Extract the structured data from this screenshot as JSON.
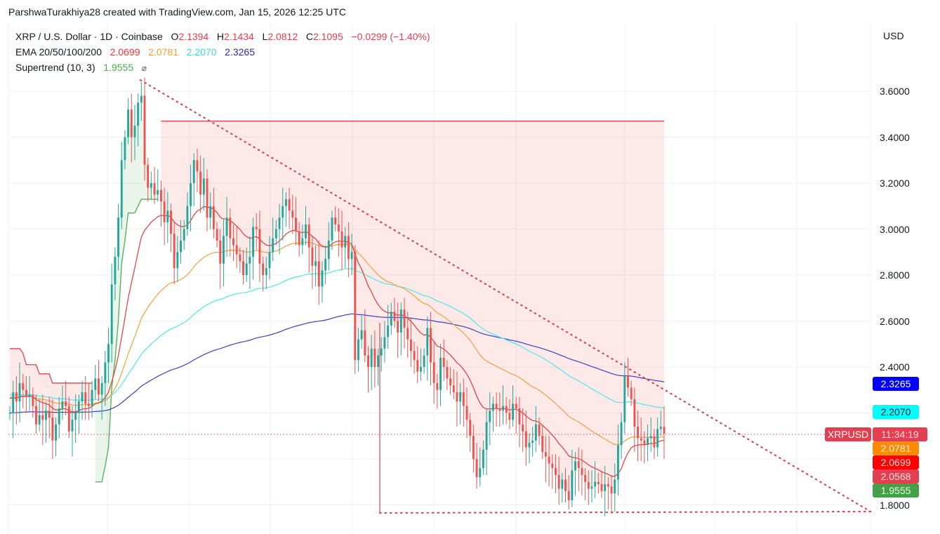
{
  "credit": "ParshwaTurakhiya28 created with TradingView.com, Jan 15, 2026 12:25 UTC",
  "legend": {
    "symbol": "XRP / U.S. Dollar · 1D · Coinbase",
    "open_label": "O",
    "open": "2.1394",
    "high_label": "H",
    "high": "2.1434",
    "low_label": "L",
    "low": "2.0812",
    "close_label": "C",
    "close": "2.1095",
    "change": "−0.0299 (−1.40%)",
    "ema_label": "EMA 20/50/100/200",
    "ema20": "2.0699",
    "ema50": "2.0781",
    "ema100": "2.2070",
    "ema200": "2.3265",
    "supertrend_label": "Supertrend (10, 3)",
    "supertrend": "1.9555",
    "hidden_icon": "⌀"
  },
  "axis": {
    "currency": "USD",
    "ticks": [
      "3.6000",
      "3.4000",
      "3.2000",
      "3.0000",
      "2.8000",
      "2.6000",
      "2.4000",
      "1.8000"
    ]
  },
  "price_tags": {
    "ema200": "2.3265",
    "ema100": "2.2070",
    "symbol": "XRPUSD",
    "countdown": "11:34:19",
    "ema50": "2.0781",
    "ema20": "2.0699",
    "prev": "2.0568",
    "supertrend": "1.9555"
  },
  "colors": {
    "up": "#26a69a",
    "down": "#ef5350",
    "ema20": "#e53935",
    "ema50": "#f5a03c",
    "ema100": "#4de8e8",
    "ema200": "#3f3fbf",
    "supertrend_up": "#4caf50",
    "supertrend_down": "#e0404f",
    "trendline": "#d04a5a"
  },
  "chart_data": {
    "type": "candlestick",
    "title": "XRP / U.S. Dollar · 1D · Coinbase",
    "ylabel": "USD",
    "ylim": [
      1.75,
      3.7
    ],
    "yticks": [
      1.8,
      2.4,
      2.6,
      2.8,
      3.0,
      3.2,
      3.4,
      3.6
    ],
    "last_close": 2.1095,
    "indicators": {
      "EMA20": 2.0699,
      "EMA50": 2.0781,
      "EMA100": 2.207,
      "EMA200": 2.3265,
      "Supertrend(10,3)": 1.9555
    },
    "annotations": [
      {
        "type": "descending_trendline",
        "from_price": 3.65,
        "to_price": 1.8,
        "style": "dotted"
      },
      {
        "type": "horizontal_support",
        "price": 1.77,
        "style": "dotted"
      },
      {
        "type": "last_price_line",
        "price": 2.1095,
        "style": "dotted"
      }
    ],
    "closes": [
      2.2,
      2.29,
      2.25,
      2.33,
      2.3,
      2.27,
      2.28,
      2.23,
      2.15,
      2.19,
      2.17,
      2.21,
      2.18,
      2.08,
      2.15,
      2.22,
      2.25,
      2.23,
      2.12,
      2.17,
      2.2,
      2.25,
      2.29,
      2.24,
      2.23,
      2.3,
      2.35,
      2.28,
      2.33,
      2.42,
      2.5,
      2.76,
      2.88,
      3.05,
      3.3,
      3.4,
      3.52,
      3.4,
      3.45,
      3.55,
      3.58,
      3.28,
      3.18,
      3.2,
      3.15,
      3.17,
      3.12,
      3.03,
      3.08,
      2.98,
      2.83,
      2.9,
      2.95,
      3.0,
      3.1,
      3.2,
      3.3,
      3.25,
      3.15,
      3.22,
      3.05,
      3.1,
      3.0,
      2.95,
      2.85,
      2.97,
      3.05,
      2.96,
      2.93,
      2.89,
      2.86,
      2.8,
      2.85,
      2.88,
      3.01,
      3.0,
      2.85,
      2.8,
      2.83,
      2.9,
      2.96,
      3.0,
      3.05,
      3.1,
      3.13,
      3.08,
      3.05,
      2.99,
      2.93,
      2.96,
      3.02,
      2.92,
      2.84,
      2.86,
      2.75,
      2.82,
      2.87,
      2.95,
      3.05,
      3.02,
      2.99,
      2.92,
      2.97,
      2.87,
      2.9,
      2.43,
      2.52,
      2.56,
      2.45,
      2.4,
      2.48,
      2.4,
      2.45,
      2.48,
      2.53,
      2.58,
      2.64,
      2.6,
      2.55,
      2.65,
      2.57,
      2.52,
      2.47,
      2.43,
      2.38,
      2.4,
      2.45,
      2.57,
      2.42,
      2.33,
      2.3,
      2.44,
      2.4,
      2.35,
      2.32,
      2.29,
      2.25,
      2.29,
      2.23,
      2.17,
      2.1,
      2.0,
      1.92,
      1.96,
      2.04,
      2.16,
      2.21,
      2.24,
      2.22,
      2.21,
      2.23,
      2.2,
      2.17,
      2.24,
      2.22,
      2.15,
      2.12,
      2.05,
      2.07,
      2.08,
      2.15,
      2.1,
      2.03,
      2.01,
      1.98,
      1.96,
      1.93,
      1.87,
      1.91,
      1.86,
      1.82,
      1.95,
      1.99,
      1.96,
      1.93,
      1.9,
      1.87,
      1.88,
      1.9,
      1.89,
      1.86,
      1.89,
      1.88,
      1.85,
      1.91,
      2.06,
      2.16,
      2.36,
      2.31,
      2.26,
      2.14,
      2.09,
      2.08,
      2.06,
      2.09,
      2.1,
      2.05,
      2.13,
      2.14,
      2.11
    ]
  }
}
